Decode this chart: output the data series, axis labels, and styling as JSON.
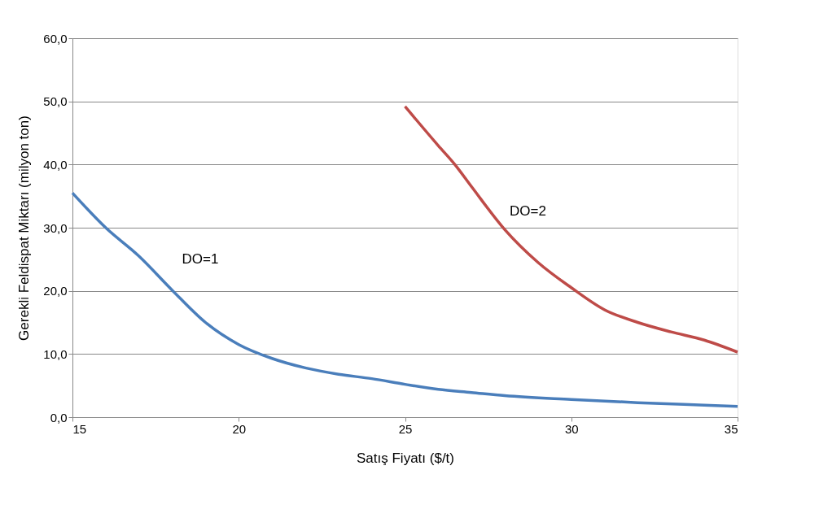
{
  "chart_data": {
    "type": "line",
    "xlabel": "Satış Fiyatı  ($/t)",
    "ylabel": "Gerekli Feldispat Miktarı (milyon ton)",
    "xlim": [
      15,
      35
    ],
    "xticks": [
      15,
      20,
      25,
      30,
      35
    ],
    "ylim": [
      0,
      60
    ],
    "yticks": [
      {
        "value": 0,
        "label": "0,0"
      },
      {
        "value": 10,
        "label": "10,0"
      },
      {
        "value": 20,
        "label": "20,0"
      },
      {
        "value": 30,
        "label": "30,0"
      },
      {
        "value": 40,
        "label": "40,0"
      },
      {
        "value": 50,
        "label": "50,0"
      },
      {
        "value": 60,
        "label": "60,0"
      }
    ],
    "grid": "y",
    "marker": "none",
    "line_style": "solid",
    "series": [
      {
        "color": "#4a7ebb",
        "x": [
          15,
          16,
          17,
          18,
          19,
          20,
          21,
          22,
          23,
          24,
          25,
          26,
          27,
          28,
          30,
          32,
          34,
          35
        ],
        "values": [
          35.5,
          30,
          25.5,
          20.1,
          15,
          11.5,
          9.3,
          7.8,
          6.8,
          6.1,
          5.2,
          4.4,
          3.9,
          3.4,
          2.8,
          2.3,
          1.9,
          1.7
        ]
      },
      {
        "color": "#be4b48",
        "x": [
          25,
          26,
          26.5,
          27,
          28,
          29,
          30,
          31,
          32,
          33,
          34,
          35
        ],
        "values": [
          49.2,
          43,
          40,
          36.5,
          29.7,
          24.5,
          20.5,
          17,
          15,
          13.5,
          12.2,
          10.3
        ]
      }
    ],
    "annotations": [
      "DO=1",
      "DO=2"
    ]
  }
}
